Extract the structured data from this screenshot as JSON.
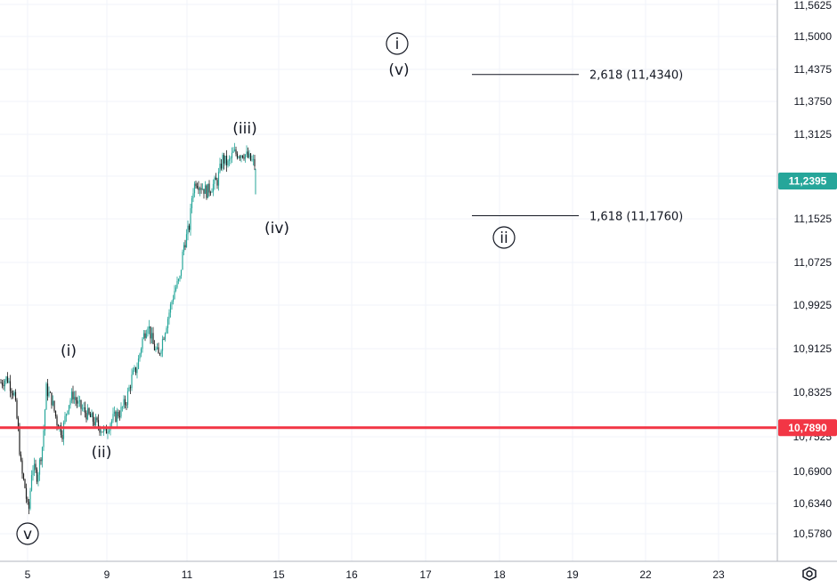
{
  "chart_data": {
    "type": "candlestick",
    "x_ticks": [
      "5",
      "9",
      "11",
      "15",
      "16",
      "17",
      "18",
      "19",
      "22",
      "23"
    ],
    "y_ticks": [
      "11,5625",
      "11,5000",
      "11,4375",
      "11,3750",
      "11,3125",
      "11,1525",
      "11,0725",
      "10,9925",
      "10,9125",
      "10,8325",
      "10,7525",
      "10,6900",
      "10,6340",
      "10,5780"
    ],
    "y_range": [
      10.545,
      11.57
    ],
    "last_price": {
      "label": "11,2395",
      "value": 11.2395,
      "color": "#26a69a"
    },
    "horizontal_line": {
      "label": "10,7890",
      "value": 10.789,
      "color": "#f23645"
    },
    "fib_levels": [
      {
        "label": "2,618 (11,4340)",
        "value": 11.434
      },
      {
        "label": "1,618 (11,1760)",
        "value": 11.176
      }
    ],
    "wave_labels": [
      {
        "text": "i",
        "circled": true
      },
      {
        "text": "(v)",
        "circled": false
      },
      {
        "text": "(iii)",
        "circled": false
      },
      {
        "text": "(iv)",
        "circled": false
      },
      {
        "text": "ii",
        "circled": true
      },
      {
        "text": "(i)",
        "circled": false
      },
      {
        "text": "(ii)",
        "circled": false
      },
      {
        "text": "v",
        "circled": true
      }
    ],
    "candle_path": [
      [
        0,
        10.87
      ],
      [
        8,
        10.88
      ],
      [
        16,
        10.85
      ],
      [
        20,
        10.79
      ],
      [
        24,
        10.71
      ],
      [
        28,
        10.68
      ],
      [
        32,
        10.63
      ],
      [
        36,
        10.72
      ],
      [
        42,
        10.7
      ],
      [
        48,
        10.76
      ],
      [
        52,
        10.86
      ],
      [
        58,
        10.84
      ],
      [
        64,
        10.8
      ],
      [
        70,
        10.78
      ],
      [
        76,
        10.83
      ],
      [
        82,
        10.85
      ],
      [
        88,
        10.83
      ],
      [
        94,
        10.82
      ],
      [
        100,
        10.81
      ],
      [
        106,
        10.8
      ],
      [
        112,
        10.79
      ],
      [
        118,
        10.78
      ],
      [
        124,
        10.8
      ],
      [
        130,
        10.81
      ],
      [
        136,
        10.82
      ],
      [
        142,
        10.84
      ],
      [
        148,
        10.88
      ],
      [
        154,
        10.9
      ],
      [
        160,
        10.95
      ],
      [
        166,
        10.98
      ],
      [
        172,
        10.94
      ],
      [
        178,
        10.92
      ],
      [
        184,
        10.96
      ],
      [
        190,
        11.0
      ],
      [
        196,
        11.04
      ],
      [
        202,
        11.06
      ],
      [
        206,
        11.12
      ],
      [
        210,
        11.14
      ],
      [
        213,
        11.16
      ],
      [
        216,
        11.22
      ],
      [
        220,
        11.24
      ],
      [
        226,
        11.23
      ],
      [
        232,
        11.22
      ],
      [
        238,
        11.23
      ],
      [
        244,
        11.24
      ],
      [
        250,
        11.28
      ],
      [
        256,
        11.27
      ],
      [
        262,
        11.29
      ],
      [
        268,
        11.29
      ],
      [
        274,
        11.29
      ],
      [
        280,
        11.28
      ],
      [
        286,
        11.27
      ]
    ]
  },
  "ui": {
    "settings_icon": "gear-icon",
    "colors": {
      "up": "#26a69a",
      "down": "#1e1e1e",
      "grid": "#f0f3fa",
      "axis": "#b2b5be"
    }
  }
}
